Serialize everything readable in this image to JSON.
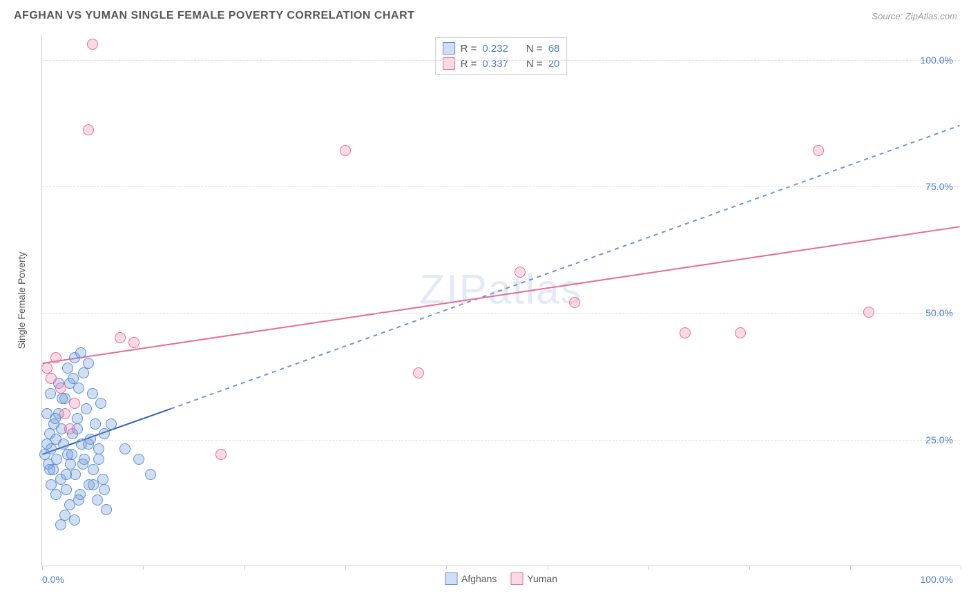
{
  "title": "AFGHAN VS YUMAN SINGLE FEMALE POVERTY CORRELATION CHART",
  "source_prefix": "Source: ",
  "source": "ZipAtlas.com",
  "ylabel": "Single Female Poverty",
  "watermark": "ZIPatlas",
  "chart": {
    "type": "scatter",
    "xlim": [
      0,
      100
    ],
    "ylim": [
      0,
      105
    ],
    "x_ticks": [
      0,
      11,
      22,
      33,
      44,
      55,
      66,
      77,
      88,
      100
    ],
    "x_tick_labels": {
      "0": "0.0%",
      "100": "100.0%"
    },
    "y_gridlines": [
      25,
      50,
      75,
      100
    ],
    "y_tick_labels": {
      "25": "25.0%",
      "50": "50.0%",
      "75": "75.0%",
      "100": "100.0%"
    },
    "background_color": "#ffffff",
    "grid_color": "#dddddd",
    "axis_color": "#cccccc",
    "point_radius": 8,
    "point_border_width": 1,
    "series": [
      {
        "name": "Afghans",
        "fill": "rgba(120,160,220,0.35)",
        "stroke": "#5b8fd6",
        "R": "0.232",
        "N": "68",
        "trend": {
          "x1": 0,
          "y1": 22,
          "x2": 14,
          "y2": 31,
          "extend_x2": 100,
          "extend_y2": 87,
          "solid_color": "#2d5fb0",
          "dash_color": "#6a94d8",
          "width": 2
        },
        "points": [
          [
            0.3,
            22
          ],
          [
            0.5,
            24
          ],
          [
            0.7,
            20
          ],
          [
            0.8,
            26
          ],
          [
            1.0,
            23
          ],
          [
            1.2,
            19
          ],
          [
            1.3,
            28
          ],
          [
            1.5,
            25
          ],
          [
            1.6,
            21
          ],
          [
            1.8,
            30
          ],
          [
            2.0,
            17
          ],
          [
            2.1,
            27
          ],
          [
            2.3,
            24
          ],
          [
            2.5,
            33
          ],
          [
            2.6,
            15
          ],
          [
            2.8,
            22
          ],
          [
            3.0,
            36
          ],
          [
            3.1,
            20
          ],
          [
            3.3,
            26
          ],
          [
            3.5,
            41
          ],
          [
            3.6,
            18
          ],
          [
            3.8,
            29
          ],
          [
            4.0,
            35
          ],
          [
            4.1,
            14
          ],
          [
            4.3,
            24
          ],
          [
            4.5,
            38
          ],
          [
            4.6,
            21
          ],
          [
            4.8,
            31
          ],
          [
            5.0,
            40
          ],
          [
            5.1,
            16
          ],
          [
            5.3,
            25
          ],
          [
            5.5,
            34
          ],
          [
            5.6,
            19
          ],
          [
            5.8,
            28
          ],
          [
            6.0,
            13
          ],
          [
            6.2,
            23
          ],
          [
            6.4,
            32
          ],
          [
            6.6,
            17
          ],
          [
            6.8,
            26
          ],
          [
            7.0,
            11
          ],
          [
            2.0,
            8
          ],
          [
            2.5,
            10
          ],
          [
            3.0,
            12
          ],
          [
            3.5,
            9
          ],
          [
            4.0,
            13
          ],
          [
            1.0,
            16
          ],
          [
            1.5,
            14
          ],
          [
            0.8,
            19
          ],
          [
            2.2,
            33
          ],
          [
            2.8,
            39
          ],
          [
            3.4,
            37
          ],
          [
            4.2,
            42
          ],
          [
            0.5,
            30
          ],
          [
            1.8,
            36
          ],
          [
            0.9,
            34
          ],
          [
            1.4,
            29
          ],
          [
            2.6,
            18
          ],
          [
            3.2,
            22
          ],
          [
            3.8,
            27
          ],
          [
            4.4,
            20
          ],
          [
            5.0,
            24
          ],
          [
            5.6,
            16
          ],
          [
            6.2,
            21
          ],
          [
            6.8,
            15
          ],
          [
            9.0,
            23
          ],
          [
            10.5,
            21
          ],
          [
            11.8,
            18
          ],
          [
            7.5,
            28
          ]
        ]
      },
      {
        "name": "Yuman",
        "fill": "rgba(240,150,180,0.35)",
        "stroke": "#e86b94",
        "R": "0.337",
        "N": "20",
        "trend": {
          "x1": 0,
          "y1": 40,
          "x2": 100,
          "y2": 67,
          "solid_color": "#e86b94",
          "width": 2
        },
        "points": [
          [
            0.5,
            39
          ],
          [
            1.0,
            37
          ],
          [
            1.5,
            41
          ],
          [
            2.0,
            35
          ],
          [
            2.5,
            30
          ],
          [
            3.0,
            27
          ],
          [
            3.5,
            32
          ],
          [
            5.5,
            103
          ],
          [
            5.0,
            86
          ],
          [
            8.5,
            45
          ],
          [
            10.0,
            44
          ],
          [
            19.5,
            22
          ],
          [
            33.0,
            82
          ],
          [
            41.0,
            38
          ],
          [
            52.0,
            58
          ],
          [
            58.0,
            52
          ],
          [
            70.0,
            46
          ],
          [
            76.0,
            46
          ],
          [
            84.5,
            82
          ],
          [
            90.0,
            50
          ]
        ]
      }
    ]
  },
  "legend_top": {
    "R_label": "R =",
    "N_label": "N ="
  },
  "legend_bottom": {
    "items": [
      "Afghans",
      "Yuman"
    ]
  }
}
